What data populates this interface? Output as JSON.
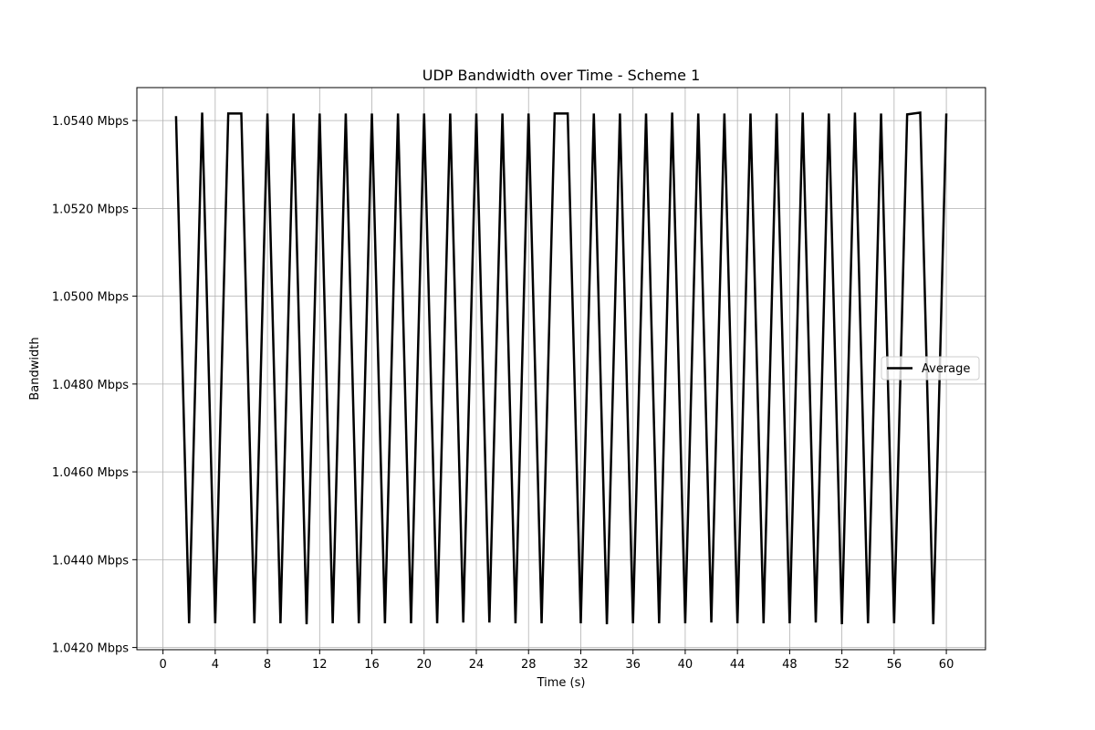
{
  "chart_data": {
    "type": "line",
    "title": "UDP Bandwidth over Time - Scheme 1",
    "xlabel": "Time (s)",
    "ylabel": "Bandwidth",
    "xlim": [
      -2,
      63
    ],
    "ylim": [
      1.04195,
      1.05475
    ],
    "xticks": [
      0,
      4,
      8,
      12,
      16,
      20,
      24,
      28,
      32,
      36,
      40,
      44,
      48,
      52,
      56,
      60
    ],
    "yticks": [
      1.042,
      1.044,
      1.046,
      1.048,
      1.05,
      1.052,
      1.054
    ],
    "ytick_labels": [
      "1.0420 Mbps",
      "1.0440 Mbps",
      "1.0460 Mbps",
      "1.0480 Mbps",
      "1.0500 Mbps",
      "1.0520 Mbps",
      "1.0540 Mbps"
    ],
    "grid": true,
    "legend_position": "center-right",
    "series": [
      {
        "name": "Average",
        "color": "#000000",
        "x": [
          1,
          2,
          3,
          4,
          5,
          6,
          7,
          8,
          9,
          10,
          11,
          12,
          13,
          14,
          15,
          16,
          17,
          18,
          19,
          20,
          21,
          22,
          23,
          24,
          25,
          26,
          27,
          28,
          29,
          30,
          31,
          32,
          33,
          34,
          35,
          36,
          37,
          38,
          39,
          40,
          41,
          42,
          43,
          44,
          45,
          46,
          47,
          48,
          49,
          50,
          51,
          52,
          53,
          54,
          55,
          56,
          57,
          58,
          59,
          60
        ],
        "values": [
          1.0541,
          1.04255,
          1.05418,
          1.04255,
          1.05416,
          1.05416,
          1.04255,
          1.05416,
          1.04255,
          1.05416,
          1.04253,
          1.05416,
          1.04255,
          1.05416,
          1.04255,
          1.05416,
          1.04255,
          1.05416,
          1.04255,
          1.05416,
          1.04255,
          1.05416,
          1.04257,
          1.05416,
          1.04257,
          1.05416,
          1.04255,
          1.05416,
          1.04255,
          1.05416,
          1.05416,
          1.04255,
          1.05416,
          1.04253,
          1.05416,
          1.04255,
          1.05416,
          1.04255,
          1.05418,
          1.04255,
          1.05416,
          1.04257,
          1.05416,
          1.04255,
          1.05416,
          1.04255,
          1.05416,
          1.04255,
          1.05418,
          1.04257,
          1.05416,
          1.04253,
          1.05418,
          1.04255,
          1.05416,
          1.04255,
          1.05414,
          1.05418,
          1.04253,
          1.05416
        ]
      }
    ]
  }
}
